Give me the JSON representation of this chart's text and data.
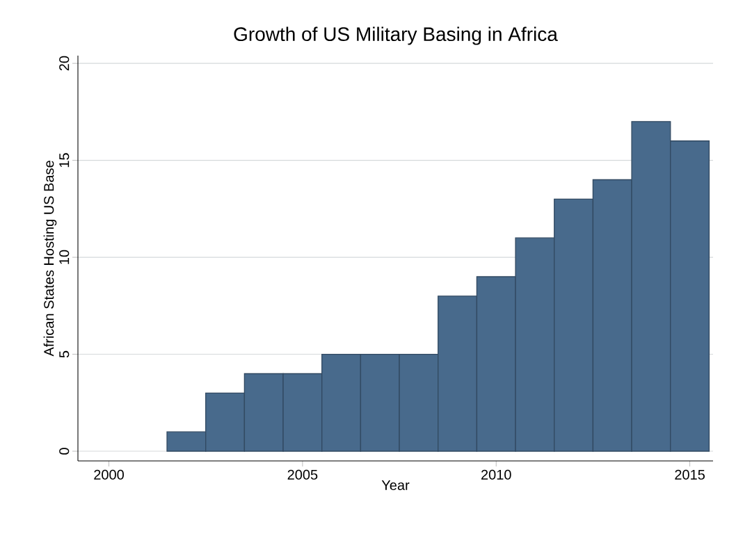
{
  "chart_data": {
    "type": "bar",
    "title": "Growth of US Military Basing in Africa",
    "xlabel": "Year",
    "ylabel": "African States Hosting US Base",
    "x": [
      2002,
      2003,
      2004,
      2005,
      2006,
      2007,
      2008,
      2009,
      2010,
      2011,
      2012,
      2013,
      2014,
      2015
    ],
    "values": [
      1,
      3,
      4,
      4,
      5,
      5,
      5,
      8,
      9,
      11,
      13,
      14,
      17,
      16
    ],
    "color": "#486a8c",
    "xlim": [
      1999.2,
      2015.6
    ],
    "ylim": [
      -0.5,
      20.4
    ],
    "xticks": [
      2000,
      2005,
      2010,
      2015
    ],
    "yticks": [
      0,
      5,
      10,
      15,
      20
    ],
    "grid": "y"
  }
}
